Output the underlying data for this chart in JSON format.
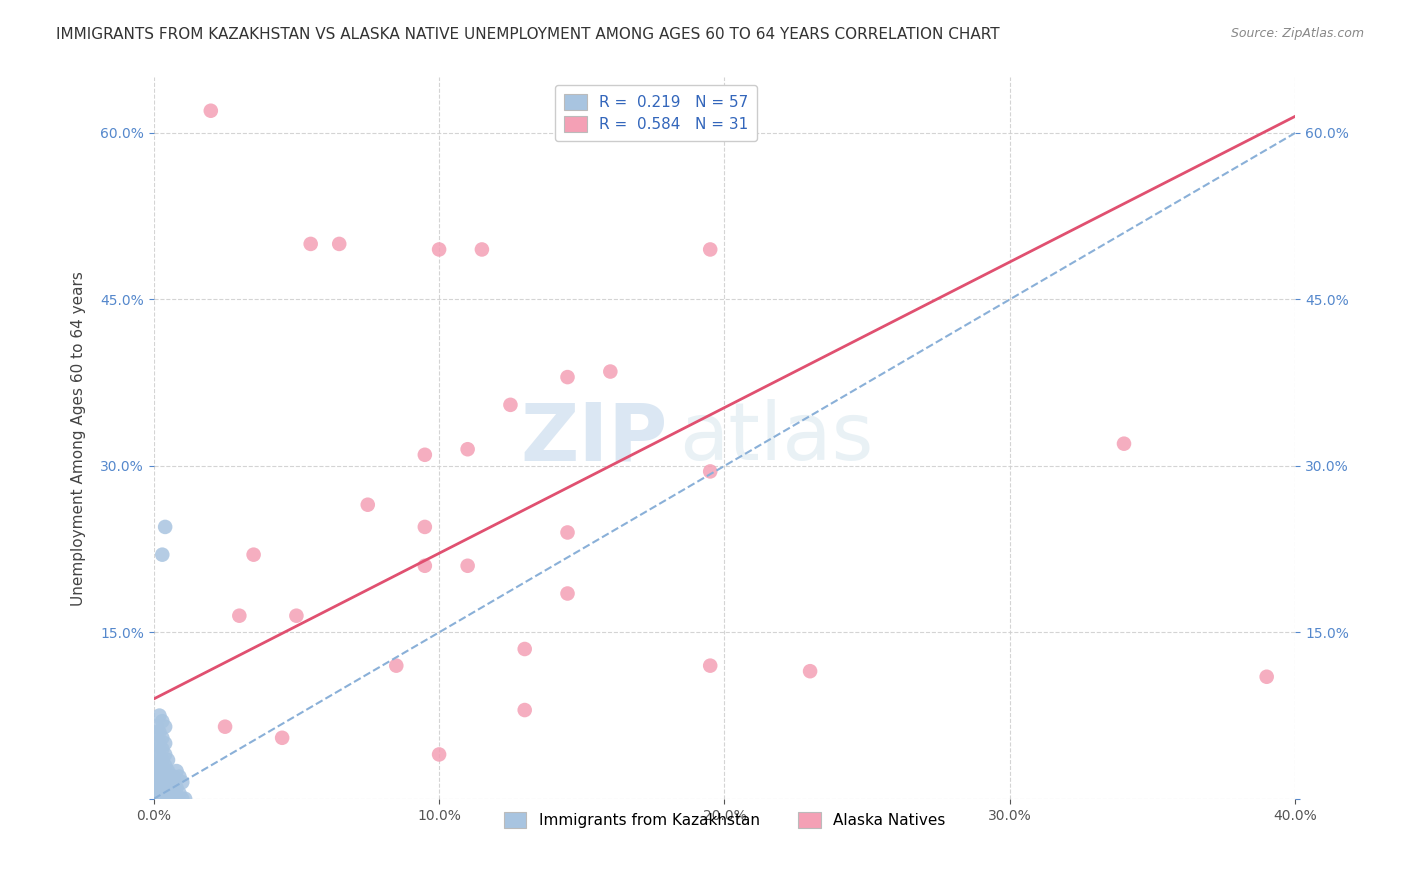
{
  "title": "IMMIGRANTS FROM KAZAKHSTAN VS ALASKA NATIVE UNEMPLOYMENT AMONG AGES 60 TO 64 YEARS CORRELATION CHART",
  "source": "Source: ZipAtlas.com",
  "ylabel": "Unemployment Among Ages 60 to 64 years",
  "xmin": 0.0,
  "xmax": 0.4,
  "ymin": 0.0,
  "ymax": 0.65,
  "x_tick_vals": [
    0.0,
    0.1,
    0.2,
    0.3,
    0.4
  ],
  "y_tick_vals": [
    0.0,
    0.15,
    0.3,
    0.45,
    0.6
  ],
  "grid_color": "#d0d0d0",
  "background_color": "#ffffff",
  "blue_color": "#a8c4e0",
  "pink_color": "#f4a0b5",
  "pink_line_color": "#e05070",
  "dashed_line_color": "#8ab0d8",
  "tick_color_x": "#555555",
  "tick_color_y": "#5588cc",
  "legend_r1": "0.219",
  "legend_n1": "57",
  "legend_r2": "0.584",
  "legend_n2": "31",
  "pink_line_x0": 0.0,
  "pink_line_y0": 0.09,
  "pink_line_x1": 0.4,
  "pink_line_y1": 0.615,
  "blue_line_x0": 0.0,
  "blue_line_y0": 0.0,
  "blue_line_x1": 0.4,
  "blue_line_y1": 0.6,
  "blue_scatter": [
    [
      0.005,
      0.0
    ],
    [
      0.008,
      0.0
    ],
    [
      0.003,
      0.005
    ],
    [
      0.006,
      0.005
    ],
    [
      0.002,
      0.01
    ],
    [
      0.004,
      0.01
    ],
    [
      0.007,
      0.01
    ],
    [
      0.003,
      0.015
    ],
    [
      0.005,
      0.015
    ],
    [
      0.002,
      0.02
    ],
    [
      0.004,
      0.02
    ],
    [
      0.006,
      0.02
    ],
    [
      0.003,
      0.025
    ],
    [
      0.005,
      0.025
    ],
    [
      0.002,
      0.03
    ],
    [
      0.004,
      0.03
    ],
    [
      0.003,
      0.035
    ],
    [
      0.005,
      0.035
    ],
    [
      0.002,
      0.04
    ],
    [
      0.004,
      0.04
    ],
    [
      0.003,
      0.045
    ],
    [
      0.002,
      0.05
    ],
    [
      0.004,
      0.05
    ],
    [
      0.003,
      0.055
    ],
    [
      0.002,
      0.06
    ],
    [
      0.004,
      0.065
    ],
    [
      0.003,
      0.07
    ],
    [
      0.002,
      0.075
    ],
    [
      0.001,
      0.0
    ],
    [
      0.001,
      0.005
    ],
    [
      0.001,
      0.01
    ],
    [
      0.001,
      0.015
    ],
    [
      0.001,
      0.02
    ],
    [
      0.001,
      0.025
    ],
    [
      0.001,
      0.03
    ],
    [
      0.001,
      0.04
    ],
    [
      0.001,
      0.05
    ],
    [
      0.001,
      0.06
    ],
    [
      0.001,
      0.065
    ],
    [
      0.002,
      0.0
    ],
    [
      0.006,
      0.0
    ],
    [
      0.007,
      0.005
    ],
    [
      0.008,
      0.01
    ],
    [
      0.004,
      0.0
    ],
    [
      0.009,
      0.005
    ],
    [
      0.01,
      0.0
    ],
    [
      0.011,
      0.0
    ],
    [
      0.003,
      0.0
    ],
    [
      0.002,
      0.005
    ],
    [
      0.005,
      0.0
    ],
    [
      0.006,
      0.01
    ],
    [
      0.007,
      0.02
    ],
    [
      0.008,
      0.025
    ],
    [
      0.009,
      0.02
    ],
    [
      0.01,
      0.015
    ],
    [
      0.003,
      0.22
    ],
    [
      0.004,
      0.245
    ]
  ],
  "pink_scatter": [
    [
      0.02,
      0.62
    ],
    [
      0.055,
      0.5
    ],
    [
      0.065,
      0.5
    ],
    [
      0.1,
      0.495
    ],
    [
      0.115,
      0.495
    ],
    [
      0.195,
      0.495
    ],
    [
      0.145,
      0.38
    ],
    [
      0.16,
      0.385
    ],
    [
      0.125,
      0.355
    ],
    [
      0.095,
      0.31
    ],
    [
      0.11,
      0.315
    ],
    [
      0.195,
      0.295
    ],
    [
      0.075,
      0.265
    ],
    [
      0.095,
      0.245
    ],
    [
      0.145,
      0.24
    ],
    [
      0.035,
      0.22
    ],
    [
      0.095,
      0.21
    ],
    [
      0.11,
      0.21
    ],
    [
      0.34,
      0.32
    ],
    [
      0.145,
      0.185
    ],
    [
      0.03,
      0.165
    ],
    [
      0.05,
      0.165
    ],
    [
      0.13,
      0.135
    ],
    [
      0.085,
      0.12
    ],
    [
      0.195,
      0.12
    ],
    [
      0.23,
      0.115
    ],
    [
      0.13,
      0.08
    ],
    [
      0.025,
      0.065
    ],
    [
      0.045,
      0.055
    ],
    [
      0.1,
      0.04
    ],
    [
      0.39,
      0.11
    ]
  ],
  "title_fontsize": 11,
  "axis_label_fontsize": 11,
  "tick_fontsize": 10,
  "legend_fontsize": 11
}
